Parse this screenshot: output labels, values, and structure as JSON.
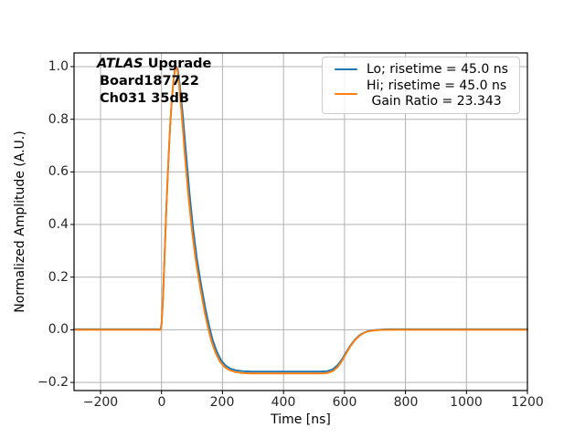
{
  "chart_data": {
    "type": "line",
    "title": "",
    "xlabel": "Time [ns]",
    "ylabel": "Normalized Amplitude (A.U.)",
    "xlim": [
      -287,
      1200
    ],
    "ylim": [
      -0.231,
      1.052
    ],
    "x_ticks": [
      -200,
      0,
      200,
      400,
      600,
      800,
      1000,
      1200
    ],
    "x_tick_labels": [
      "−200",
      "0",
      "200",
      "400",
      "600",
      "800",
      "1000",
      "1200"
    ],
    "y_ticks": [
      -0.2,
      0.0,
      0.2,
      0.4,
      0.6,
      0.8,
      1.0
    ],
    "y_tick_labels": [
      "−0.2",
      "0.0",
      "0.2",
      "0.4",
      "0.6",
      "0.8",
      "1.0"
    ],
    "grid": true,
    "grid_color": "#b0b0b0",
    "spine_color": "#000000",
    "background": "#ffffff",
    "legend_position": "upper right",
    "annotation": {
      "line1_italic": "ATLAS",
      "line1_rest": " Upgrade",
      "line2": "Board187722",
      "line3": "Ch031 35dB"
    },
    "legend": {
      "entries": [
        {
          "label": "Lo; risetime = 45.0 ns",
          "color": "#1f77b4"
        },
        {
          "label": "Hi; risetime = 45.0 ns",
          "label2": "Gain Ratio = 23.343",
          "color": "#ff7f0e"
        }
      ]
    },
    "series": [
      {
        "name": "Lo; risetime = 45.0 ns",
        "color": "#1f77b4",
        "points": [
          [
            -287,
            0.002
          ],
          [
            -150,
            0.002
          ],
          [
            -60,
            0.002
          ],
          [
            -10,
            0.002
          ],
          [
            -3,
            0.002
          ],
          [
            0,
            0.022
          ],
          [
            4,
            0.1
          ],
          [
            10,
            0.28
          ],
          [
            16,
            0.47
          ],
          [
            22,
            0.63
          ],
          [
            28,
            0.77
          ],
          [
            34,
            0.88
          ],
          [
            40,
            0.955
          ],
          [
            45,
            0.995
          ],
          [
            48,
            1.0
          ],
          [
            53,
            0.99
          ],
          [
            60,
            0.93
          ],
          [
            69,
            0.825
          ],
          [
            80,
            0.675
          ],
          [
            92,
            0.515
          ],
          [
            104,
            0.38
          ],
          [
            116,
            0.27
          ],
          [
            130,
            0.17
          ],
          [
            144,
            0.08
          ],
          [
            156,
            0.015
          ],
          [
            168,
            -0.04
          ],
          [
            182,
            -0.085
          ],
          [
            196,
            -0.117
          ],
          [
            210,
            -0.136
          ],
          [
            226,
            -0.148
          ],
          [
            244,
            -0.154
          ],
          [
            264,
            -0.157
          ],
          [
            294,
            -0.159
          ],
          [
            350,
            -0.159
          ],
          [
            450,
            -0.159
          ],
          [
            520,
            -0.159
          ],
          [
            545,
            -0.157
          ],
          [
            562,
            -0.15
          ],
          [
            578,
            -0.134
          ],
          [
            592,
            -0.112
          ],
          [
            606,
            -0.085
          ],
          [
            620,
            -0.059
          ],
          [
            634,
            -0.038
          ],
          [
            648,
            -0.022
          ],
          [
            662,
            -0.012
          ],
          [
            678,
            -0.005
          ],
          [
            695,
            -0.002
          ],
          [
            715,
            0.0
          ],
          [
            740,
            0.002
          ],
          [
            800,
            0.002
          ],
          [
            1000,
            0.002
          ],
          [
            1200,
            0.002
          ]
        ]
      },
      {
        "name": "Hi; risetime = 45.0 ns  Gain Ratio = 23.343",
        "color": "#ff7f0e",
        "points": [
          [
            -287,
            0
          ],
          [
            -150,
            0
          ],
          [
            -60,
            0
          ],
          [
            -10,
            0
          ],
          [
            -3,
            0
          ],
          [
            0,
            0.02
          ],
          [
            4,
            0.1
          ],
          [
            10,
            0.28
          ],
          [
            16,
            0.47
          ],
          [
            22,
            0.63
          ],
          [
            28,
            0.77
          ],
          [
            34,
            0.88
          ],
          [
            40,
            0.955
          ],
          [
            45,
            0.995
          ],
          [
            48,
            1.0
          ],
          [
            52,
            0.985
          ],
          [
            58,
            0.925
          ],
          [
            66,
            0.82
          ],
          [
            76,
            0.67
          ],
          [
            88,
            0.51
          ],
          [
            100,
            0.375
          ],
          [
            112,
            0.265
          ],
          [
            126,
            0.165
          ],
          [
            140,
            0.075
          ],
          [
            152,
            0.01
          ],
          [
            164,
            -0.045
          ],
          [
            178,
            -0.09
          ],
          [
            192,
            -0.122
          ],
          [
            206,
            -0.141
          ],
          [
            222,
            -0.153
          ],
          [
            240,
            -0.16
          ],
          [
            260,
            -0.164
          ],
          [
            290,
            -0.166
          ],
          [
            350,
            -0.166
          ],
          [
            450,
            -0.166
          ],
          [
            520,
            -0.166
          ],
          [
            545,
            -0.164
          ],
          [
            562,
            -0.157
          ],
          [
            578,
            -0.141
          ],
          [
            592,
            -0.118
          ],
          [
            606,
            -0.089
          ],
          [
            620,
            -0.062
          ],
          [
            634,
            -0.04
          ],
          [
            648,
            -0.024
          ],
          [
            662,
            -0.013
          ],
          [
            678,
            -0.006
          ],
          [
            695,
            -0.003
          ],
          [
            715,
            -0.001
          ],
          [
            740,
            0
          ],
          [
            800,
            0
          ],
          [
            1000,
            0
          ],
          [
            1200,
            0
          ]
        ]
      }
    ]
  }
}
